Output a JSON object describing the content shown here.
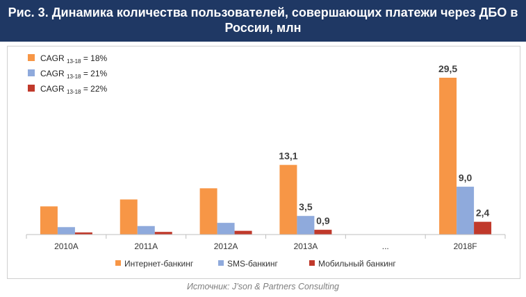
{
  "header": {
    "title": "Рис. 3. Динамика количества пользователей, совершающих платежи через ДБО в России, млн"
  },
  "source": "Источник: J’son & Partners Consulting",
  "cagr_notes": [
    {
      "prefix": "CAGR",
      "sub": "13-18",
      "value": " = 18%",
      "color": "#f79646"
    },
    {
      "prefix": "CAGR",
      "sub": "13-18",
      "value": " = 21%",
      "color": "#8faadc"
    },
    {
      "prefix": "CAGR",
      "sub": "13-18",
      "value": " = 22%",
      "color": "#c0392b"
    }
  ],
  "chart_data": {
    "type": "bar",
    "title": "",
    "xlabel": "",
    "ylabel": "",
    "ylim": [
      0,
      32
    ],
    "grid": false,
    "legend_position": "bottom",
    "categories": [
      "2010A",
      "2011A",
      "2012A",
      "2013A",
      "...",
      "2018F"
    ],
    "series": [
      {
        "name": "Интернет-банкинг",
        "color": "#f79646",
        "values": [
          5.3,
          6.6,
          8.7,
          13.1,
          null,
          29.5
        ],
        "labels": [
          "",
          "",
          "",
          "13,1",
          "",
          "29,5"
        ]
      },
      {
        "name": "SMS-банкинг",
        "color": "#8faadc",
        "values": [
          1.4,
          1.6,
          2.2,
          3.5,
          null,
          9.0
        ],
        "labels": [
          "",
          "",
          "",
          "3,5",
          "",
          "9,0"
        ]
      },
      {
        "name": "Мобильный банкинг",
        "color": "#c0392b",
        "values": [
          0.4,
          0.5,
          0.7,
          0.9,
          null,
          2.4
        ],
        "labels": [
          "",
          "",
          "",
          "0,9",
          "",
          "2,4"
        ]
      }
    ]
  }
}
